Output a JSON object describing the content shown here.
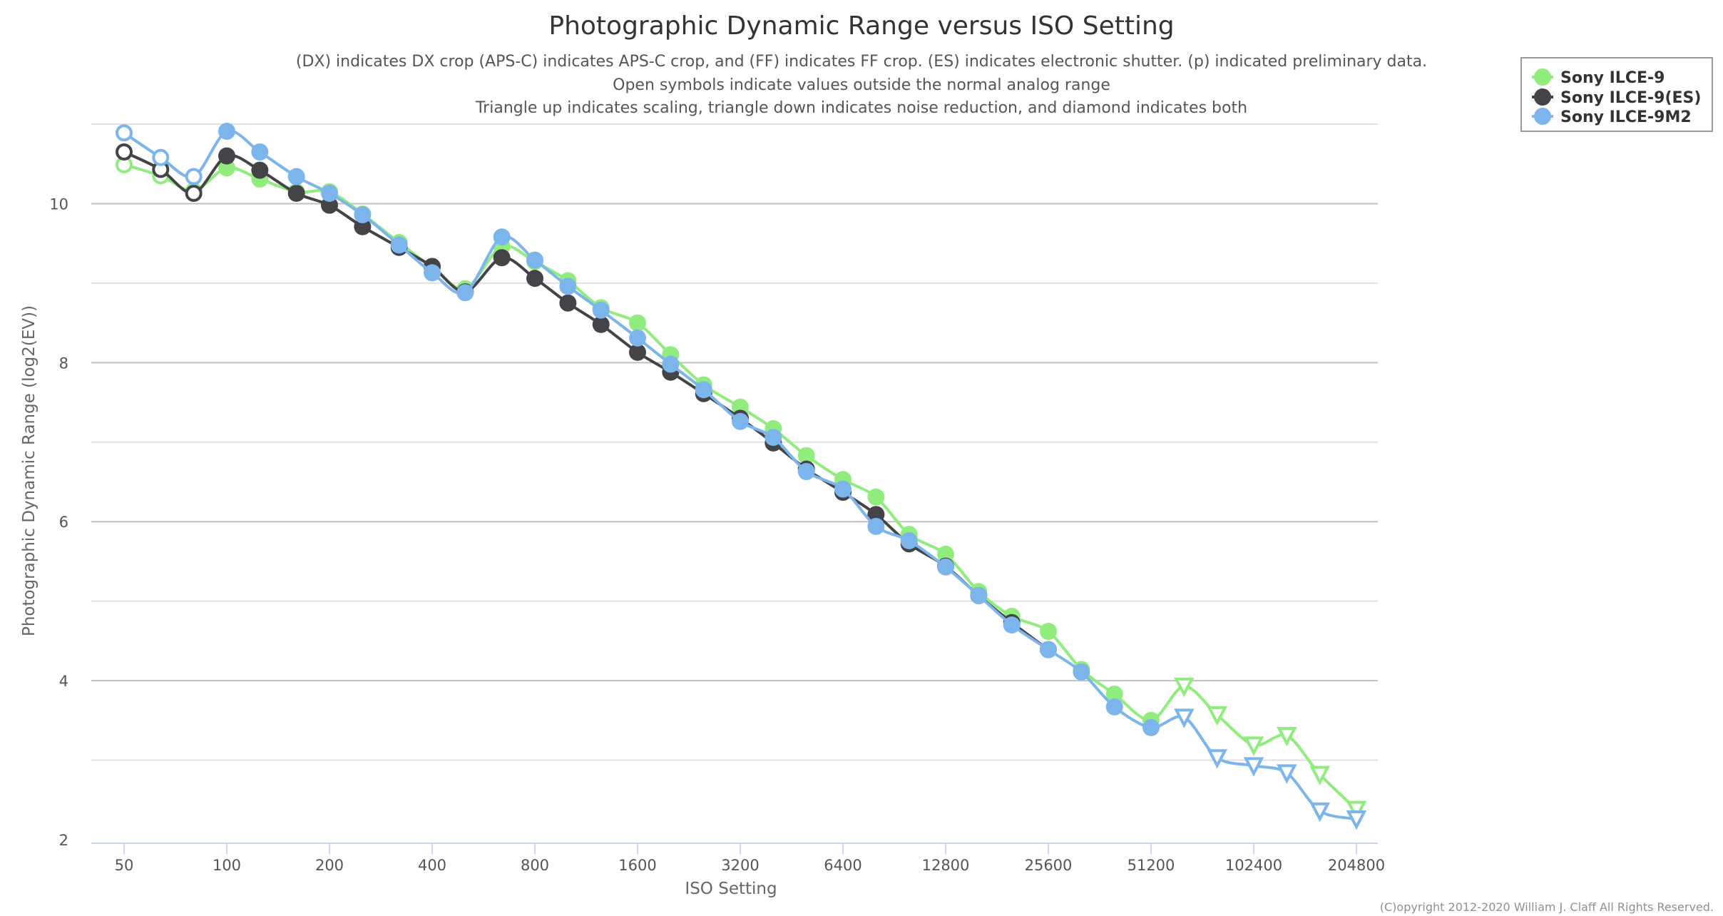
{
  "chart_data": {
    "type": "line",
    "title": "Photographic Dynamic Range versus ISO Setting",
    "subtitle": [
      "(DX) indicates DX crop (APS-C) indicates APS-C crop, and (FF) indicates FF crop. (ES) indicates electronic shutter. (p) indicated preliminary data.",
      "Open symbols indicate values outside the normal analog range",
      "Triangle up indicates scaling, triangle down indicates noise reduction, and diamond indicates both"
    ],
    "xlabel": "ISO Setting",
    "ylabel": "Photographic Dynamic Range (log2(EV))",
    "x_scale": "log2",
    "xlim": [
      50,
      204800
    ],
    "ylim": [
      2,
      11
    ],
    "x_ticks": [
      "50",
      "100",
      "200",
      "400",
      "800",
      "1600",
      "3200",
      "6400",
      "12800",
      "25600",
      "51200",
      "102400",
      "204800"
    ],
    "y_ticks": [
      2,
      4,
      6,
      8,
      10
    ],
    "grid": true,
    "legend_position": "top-right",
    "credit": "(C)opyright 2012-2020 William J. Claff All Rights Reserved.",
    "series": [
      {
        "name": "Sony ILCE-9",
        "color": "#90ed7d",
        "points": [
          {
            "iso": 50,
            "dr": 10.49,
            "marker": "open-circle"
          },
          {
            "iso": 64,
            "dr": 10.35,
            "marker": "open-circle"
          },
          {
            "iso": 80,
            "dr": 10.16,
            "marker": "circle"
          },
          {
            "iso": 100,
            "dr": 10.45,
            "marker": "circle"
          },
          {
            "iso": 125,
            "dr": 10.31,
            "marker": "circle"
          },
          {
            "iso": 160,
            "dr": 10.15,
            "marker": "circle"
          },
          {
            "iso": 200,
            "dr": 10.15,
            "marker": "circle"
          },
          {
            "iso": 250,
            "dr": 9.87,
            "marker": "circle"
          },
          {
            "iso": 320,
            "dr": 9.51,
            "marker": "circle"
          },
          {
            "iso": 400,
            "dr": 9.2,
            "marker": "circle"
          },
          {
            "iso": 500,
            "dr": 8.93,
            "marker": "circle"
          },
          {
            "iso": 640,
            "dr": 9.46,
            "marker": "circle"
          },
          {
            "iso": 800,
            "dr": 9.27,
            "marker": "circle"
          },
          {
            "iso": 1000,
            "dr": 9.03,
            "marker": "circle"
          },
          {
            "iso": 1250,
            "dr": 8.69,
            "marker": "circle"
          },
          {
            "iso": 1600,
            "dr": 8.5,
            "marker": "circle"
          },
          {
            "iso": 2000,
            "dr": 8.1,
            "marker": "circle"
          },
          {
            "iso": 2500,
            "dr": 7.72,
            "marker": "circle"
          },
          {
            "iso": 3200,
            "dr": 7.44,
            "marker": "circle"
          },
          {
            "iso": 4000,
            "dr": 7.17,
            "marker": "circle"
          },
          {
            "iso": 5000,
            "dr": 6.83,
            "marker": "circle"
          },
          {
            "iso": 6400,
            "dr": 6.53,
            "marker": "circle"
          },
          {
            "iso": 8000,
            "dr": 6.31,
            "marker": "circle"
          },
          {
            "iso": 10000,
            "dr": 5.84,
            "marker": "circle"
          },
          {
            "iso": 12800,
            "dr": 5.59,
            "marker": "circle"
          },
          {
            "iso": 16000,
            "dr": 5.12,
            "marker": "circle"
          },
          {
            "iso": 20000,
            "dr": 4.81,
            "marker": "circle"
          },
          {
            "iso": 25600,
            "dr": 4.62,
            "marker": "circle"
          },
          {
            "iso": 32000,
            "dr": 4.14,
            "marker": "circle"
          },
          {
            "iso": 40000,
            "dr": 3.83,
            "marker": "circle"
          },
          {
            "iso": 51200,
            "dr": 3.5,
            "marker": "circle"
          },
          {
            "iso": 64000,
            "dr": 3.93,
            "marker": "open-triangle-down"
          },
          {
            "iso": 80000,
            "dr": 3.57,
            "marker": "open-triangle-down"
          },
          {
            "iso": 102400,
            "dr": 3.19,
            "marker": "open-triangle-down"
          },
          {
            "iso": 128000,
            "dr": 3.31,
            "marker": "open-triangle-down"
          },
          {
            "iso": 160000,
            "dr": 2.82,
            "marker": "open-triangle-down"
          },
          {
            "iso": 204800,
            "dr": 2.38,
            "marker": "open-triangle-down"
          }
        ]
      },
      {
        "name": "Sony ILCE-9(ES)",
        "color": "#434348",
        "points": [
          {
            "iso": 50,
            "dr": 10.65,
            "marker": "open-circle"
          },
          {
            "iso": 64,
            "dr": 10.43,
            "marker": "open-circle"
          },
          {
            "iso": 80,
            "dr": 10.13,
            "marker": "open-circle"
          },
          {
            "iso": 100,
            "dr": 10.6,
            "marker": "circle"
          },
          {
            "iso": 125,
            "dr": 10.42,
            "marker": "circle"
          },
          {
            "iso": 160,
            "dr": 10.13,
            "marker": "circle"
          },
          {
            "iso": 200,
            "dr": 9.98,
            "marker": "circle"
          },
          {
            "iso": 250,
            "dr": 9.71,
            "marker": "circle"
          },
          {
            "iso": 320,
            "dr": 9.45,
            "marker": "circle"
          },
          {
            "iso": 400,
            "dr": 9.21,
            "marker": "circle"
          },
          {
            "iso": 500,
            "dr": 8.89,
            "marker": "circle"
          },
          {
            "iso": 640,
            "dr": 9.32,
            "marker": "circle"
          },
          {
            "iso": 800,
            "dr": 9.06,
            "marker": "circle"
          },
          {
            "iso": 1000,
            "dr": 8.75,
            "marker": "circle"
          },
          {
            "iso": 1250,
            "dr": 8.48,
            "marker": "circle"
          },
          {
            "iso": 1600,
            "dr": 8.13,
            "marker": "circle"
          },
          {
            "iso": 2000,
            "dr": 7.88,
            "marker": "circle"
          },
          {
            "iso": 2500,
            "dr": 7.61,
            "marker": "circle"
          },
          {
            "iso": 3200,
            "dr": 7.3,
            "marker": "circle"
          },
          {
            "iso": 4000,
            "dr": 6.99,
            "marker": "circle"
          },
          {
            "iso": 5000,
            "dr": 6.66,
            "marker": "circle"
          },
          {
            "iso": 6400,
            "dr": 6.37,
            "marker": "circle"
          },
          {
            "iso": 8000,
            "dr": 6.09,
            "marker": "circle"
          },
          {
            "iso": 10000,
            "dr": 5.72,
            "marker": "circle"
          },
          {
            "iso": 12800,
            "dr": 5.44,
            "marker": "circle"
          },
          {
            "iso": 16000,
            "dr": 5.07,
            "marker": "circle"
          },
          {
            "iso": 20000,
            "dr": 4.73,
            "marker": "circle"
          },
          {
            "iso": 25600,
            "dr": 4.39,
            "marker": "circle"
          }
        ]
      },
      {
        "name": "Sony ILCE-9M2",
        "color": "#7cb5ec",
        "points": [
          {
            "iso": 50,
            "dr": 10.89,
            "marker": "open-circle"
          },
          {
            "iso": 64,
            "dr": 10.58,
            "marker": "open-circle"
          },
          {
            "iso": 80,
            "dr": 10.34,
            "marker": "open-circle"
          },
          {
            "iso": 100,
            "dr": 10.91,
            "marker": "circle"
          },
          {
            "iso": 125,
            "dr": 10.65,
            "marker": "circle"
          },
          {
            "iso": 160,
            "dr": 10.34,
            "marker": "circle"
          },
          {
            "iso": 200,
            "dr": 10.13,
            "marker": "circle"
          },
          {
            "iso": 250,
            "dr": 9.86,
            "marker": "circle"
          },
          {
            "iso": 320,
            "dr": 9.48,
            "marker": "circle"
          },
          {
            "iso": 400,
            "dr": 9.13,
            "marker": "circle"
          },
          {
            "iso": 500,
            "dr": 8.88,
            "marker": "circle"
          },
          {
            "iso": 640,
            "dr": 9.58,
            "marker": "circle"
          },
          {
            "iso": 800,
            "dr": 9.29,
            "marker": "circle"
          },
          {
            "iso": 1000,
            "dr": 8.96,
            "marker": "circle"
          },
          {
            "iso": 1250,
            "dr": 8.66,
            "marker": "circle"
          },
          {
            "iso": 1600,
            "dr": 8.31,
            "marker": "circle"
          },
          {
            "iso": 2000,
            "dr": 7.98,
            "marker": "circle"
          },
          {
            "iso": 2500,
            "dr": 7.66,
            "marker": "circle"
          },
          {
            "iso": 3200,
            "dr": 7.26,
            "marker": "circle"
          },
          {
            "iso": 4000,
            "dr": 7.06,
            "marker": "circle"
          },
          {
            "iso": 5000,
            "dr": 6.63,
            "marker": "circle"
          },
          {
            "iso": 6400,
            "dr": 6.41,
            "marker": "circle"
          },
          {
            "iso": 8000,
            "dr": 5.94,
            "marker": "circle"
          },
          {
            "iso": 10000,
            "dr": 5.76,
            "marker": "circle"
          },
          {
            "iso": 12800,
            "dr": 5.43,
            "marker": "circle"
          },
          {
            "iso": 16000,
            "dr": 5.07,
            "marker": "circle"
          },
          {
            "iso": 20000,
            "dr": 4.7,
            "marker": "circle"
          },
          {
            "iso": 25600,
            "dr": 4.39,
            "marker": "circle"
          },
          {
            "iso": 32000,
            "dr": 4.11,
            "marker": "circle"
          },
          {
            "iso": 40000,
            "dr": 3.67,
            "marker": "circle"
          },
          {
            "iso": 51200,
            "dr": 3.41,
            "marker": "circle"
          },
          {
            "iso": 64000,
            "dr": 3.54,
            "marker": "open-triangle-down"
          },
          {
            "iso": 80000,
            "dr": 3.03,
            "marker": "open-triangle-down"
          },
          {
            "iso": 102400,
            "dr": 2.93,
            "marker": "open-triangle-down"
          },
          {
            "iso": 128000,
            "dr": 2.84,
            "marker": "open-triangle-down"
          },
          {
            "iso": 160000,
            "dr": 2.36,
            "marker": "open-triangle-down"
          },
          {
            "iso": 204800,
            "dr": 2.26,
            "marker": "open-triangle-down"
          }
        ]
      }
    ]
  }
}
